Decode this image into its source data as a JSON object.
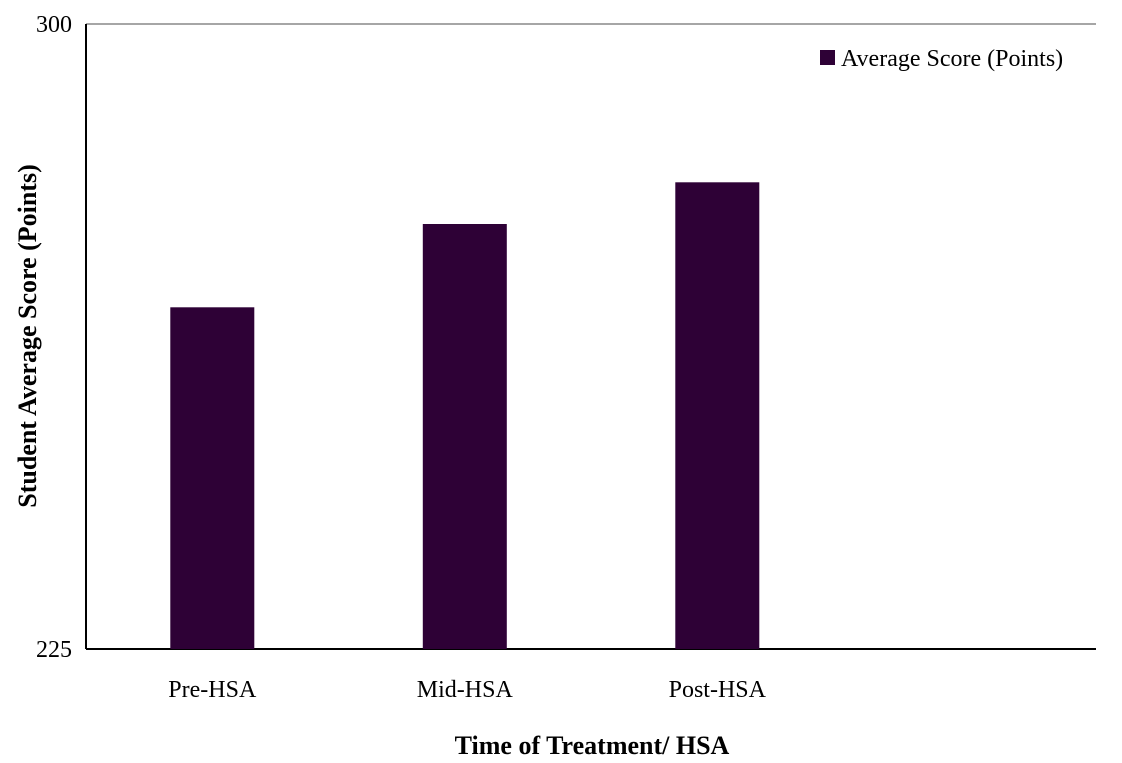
{
  "chart_data": {
    "type": "bar",
    "categories": [
      "Pre-HSA",
      "Mid-HSA",
      "Post-HSA",
      ""
    ],
    "series": [
      {
        "name": "Average Score (Points)",
        "values": [
          266,
          276,
          281,
          null
        ]
      }
    ],
    "title": "",
    "xlabel": "Time of Treatment/ HSA",
    "ylabel": "Student Average Score (Points)",
    "ylim": [
      225,
      300
    ],
    "yticks": [
      225,
      300
    ],
    "grid": false,
    "legend": "top-right",
    "colors": {
      "bar": "#2e0136",
      "axis": "#000000",
      "top_line": "#a6a6a6"
    }
  }
}
